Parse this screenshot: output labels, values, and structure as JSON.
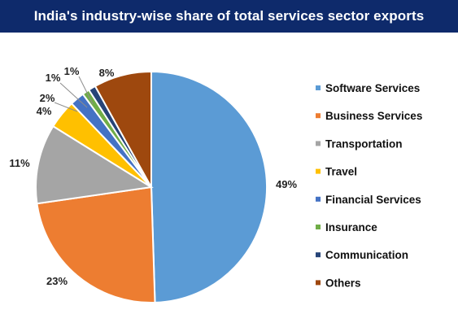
{
  "colors": {
    "title_bar": "#0e2a6b",
    "title_text": "#ffffff"
  },
  "chart_data": {
    "type": "pie",
    "title": "India's industry-wise share of total services sector exports",
    "slices": [
      {
        "label": "Software Services",
        "value": 49,
        "display": "49%",
        "color": "#5b9bd5"
      },
      {
        "label": "Business Services",
        "value": 23,
        "display": "23%",
        "color": "#ed7d31"
      },
      {
        "label": "Transportation",
        "value": 11,
        "display": "11%",
        "color": "#a5a5a5"
      },
      {
        "label": "Travel",
        "value": 4,
        "display": "4%",
        "color": "#ffc000"
      },
      {
        "label": "Financial Services",
        "value": 2,
        "display": "2%",
        "color": "#4472c4"
      },
      {
        "label": "Insurance",
        "value": 1,
        "display": "1%",
        "color": "#70ad47"
      },
      {
        "label": "Communication",
        "value": 1,
        "display": "1%",
        "color": "#264478"
      },
      {
        "label": "Others",
        "value": 8,
        "display": "8%",
        "color": "#9e480e"
      }
    ],
    "legend_position": "right"
  }
}
